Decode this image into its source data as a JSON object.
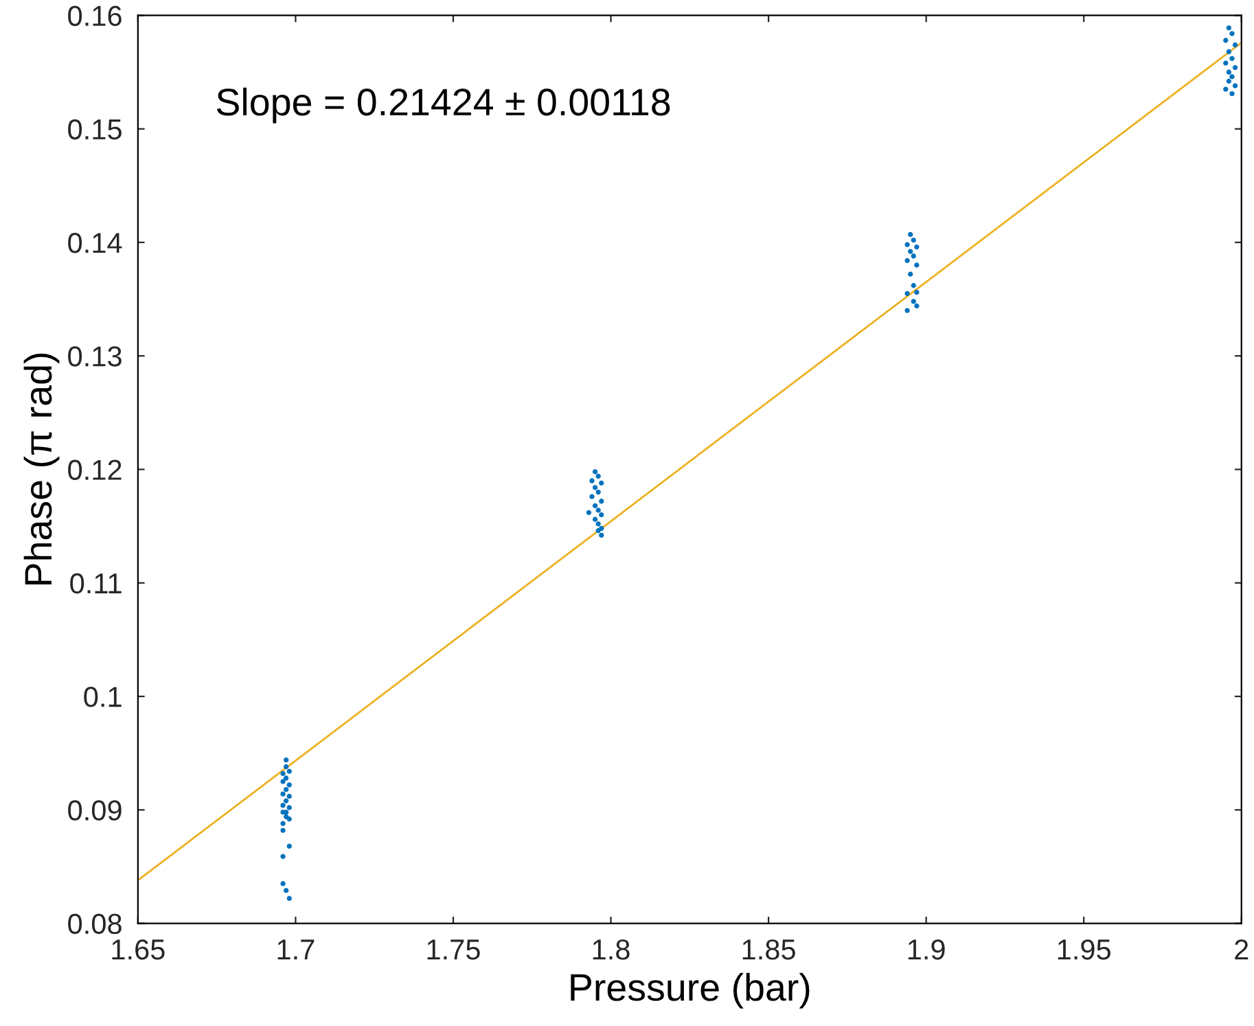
{
  "chart_data": {
    "type": "scatter",
    "xlabel": "Pressure (bar)",
    "ylabel": "Phase (π rad)",
    "xlim": [
      1.65,
      2
    ],
    "ylim": [
      0.08,
      0.16
    ],
    "xticks": [
      1.65,
      1.7,
      1.75,
      1.8,
      1.85,
      1.9,
      1.95,
      2
    ],
    "yticks": [
      0.08,
      0.09,
      0.1,
      0.11,
      0.12,
      0.13,
      0.14,
      0.15,
      0.16
    ],
    "grid": false,
    "annotations": [
      "Slope = 0.21424 ± 0.00118"
    ],
    "series": [
      {
        "color": "#0072bd",
        "marker": "circle",
        "x": [
          1.697,
          1.697,
          1.696,
          1.698,
          1.697,
          1.696,
          1.698,
          1.697,
          1.696,
          1.698,
          1.697,
          1.696,
          1.698,
          1.697,
          1.697,
          1.696,
          1.698,
          1.696,
          1.696,
          1.696,
          1.696,
          1.698,
          1.697,
          1.698,
          1.795,
          1.796,
          1.794,
          1.797,
          1.795,
          1.796,
          1.794,
          1.797,
          1.795,
          1.796,
          1.797,
          1.795,
          1.796,
          1.797,
          1.793,
          1.797,
          1.796,
          1.895,
          1.896,
          1.894,
          1.897,
          1.895,
          1.896,
          1.894,
          1.897,
          1.895,
          1.896,
          1.897,
          1.894,
          1.896,
          1.894,
          1.897,
          1.996,
          1.997,
          1.995,
          1.998,
          1.996,
          1.997,
          1.995,
          1.998,
          1.996,
          1.997,
          1.996,
          1.998,
          1.995,
          1.997
        ],
        "values": [
          0.0944,
          0.0938,
          0.0932,
          0.0934,
          0.0928,
          0.0925,
          0.0922,
          0.0918,
          0.0914,
          0.0912,
          0.0908,
          0.0904,
          0.0902,
          0.0898,
          0.0894,
          0.0898,
          0.0892,
          0.0888,
          0.0882,
          0.0859,
          0.0835,
          0.0868,
          0.0829,
          0.0822,
          0.1198,
          0.1194,
          0.119,
          0.1188,
          0.1184,
          0.118,
          0.1176,
          0.1172,
          0.1168,
          0.1164,
          0.116,
          0.1156,
          0.1152,
          0.1148,
          0.1162,
          0.1142,
          0.1146,
          0.1407,
          0.1402,
          0.1398,
          0.1396,
          0.1392,
          0.1388,
          0.1384,
          0.138,
          0.1372,
          0.1362,
          0.1356,
          0.1355,
          0.1348,
          0.134,
          0.1344,
          0.1589,
          0.1584,
          0.1578,
          0.1574,
          0.1568,
          0.1562,
          0.1558,
          0.1554,
          0.155,
          0.1546,
          0.1542,
          0.1538,
          0.1535,
          0.1531
        ]
      },
      {
        "type": "line",
        "color": "#edb120",
        "line_style": "solid",
        "marker": "none",
        "x": [
          1.65,
          2
        ],
        "values": [
          0.0838,
          0.1576
        ]
      }
    ]
  }
}
